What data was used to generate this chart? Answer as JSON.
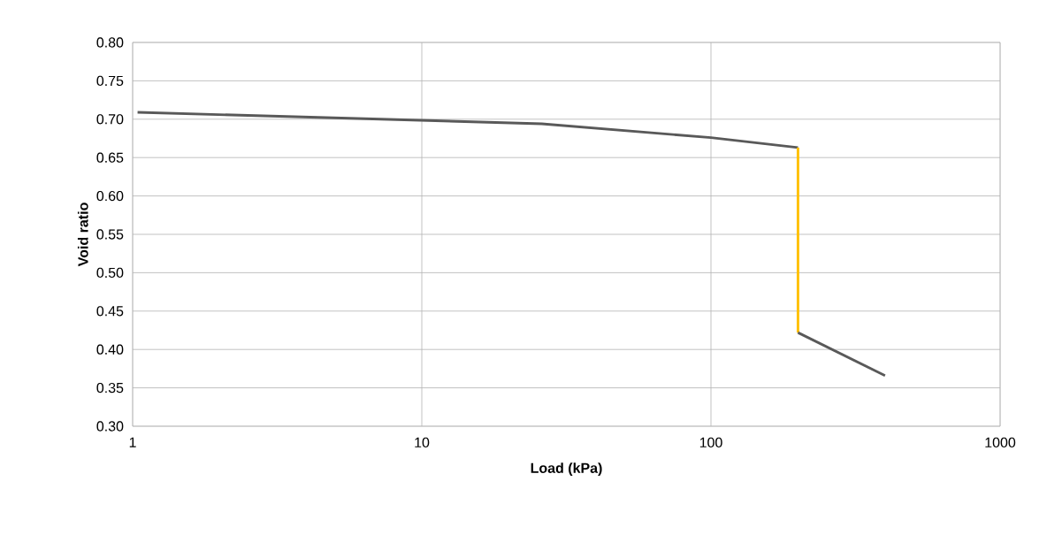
{
  "chart_data": {
    "type": "line",
    "xlabel": "Load (kPa)",
    "ylabel": "Void ratio",
    "log": "x",
    "grid": true,
    "marker": "none",
    "line_style": "solid",
    "xlim": [
      1,
      1000
    ],
    "xticks": [
      1,
      10,
      100,
      1000
    ],
    "ylim": [
      0.3,
      0.8
    ],
    "yticks": [
      {
        "value": 0.3,
        "label": "0.30"
      },
      {
        "value": 0.35,
        "label": "0.35"
      },
      {
        "value": 0.4,
        "label": "0.40"
      },
      {
        "value": 0.45,
        "label": "0.45"
      },
      {
        "value": 0.5,
        "label": "0.50"
      },
      {
        "value": 0.55,
        "label": "0.55"
      },
      {
        "value": 0.6,
        "label": "0.60"
      },
      {
        "value": 0.65,
        "label": "0.65"
      },
      {
        "value": 0.7,
        "label": "0.70"
      },
      {
        "value": 0.75,
        "label": "0.75"
      },
      {
        "value": 0.8,
        "label": "0.80"
      }
    ],
    "series": [
      {
        "color": "#595959",
        "x": [
          1.04,
          26,
          100,
          200
        ],
        "values": [
          0.709,
          0.694,
          0.676,
          0.663
        ]
      },
      {
        "color": "#ffc000",
        "x": [
          200,
          200
        ],
        "values": [
          0.663,
          0.422
        ]
      },
      {
        "color": "#595959",
        "x": [
          200,
          400
        ],
        "values": [
          0.422,
          0.366
        ]
      }
    ]
  }
}
